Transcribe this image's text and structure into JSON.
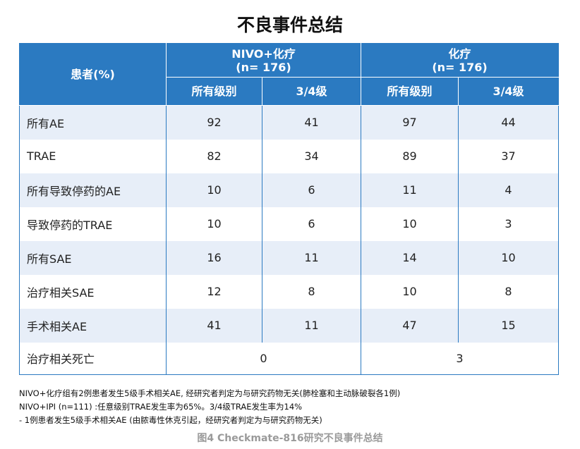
{
  "title": "不良事件总结",
  "table": {
    "header": {
      "patients_label": "患者(%)",
      "group1_name": "NIVO+化疗",
      "group1_n": "(n= 176)",
      "group2_name": "化疗",
      "group2_n": "(n= 176)",
      "sub_all": "所有级别",
      "sub_34": "3/4级"
    },
    "rows": [
      {
        "label": "所有AE",
        "nivo_all": "92",
        "nivo_34": "41",
        "chemo_all": "97",
        "chemo_34": "44"
      },
      {
        "label": "TRAE",
        "nivo_all": "82",
        "nivo_34": "34",
        "chemo_all": "89",
        "chemo_34": "37"
      },
      {
        "label": "所有导致停药的AE",
        "nivo_all": "10",
        "nivo_34": "6",
        "chemo_all": "11",
        "chemo_34": "4"
      },
      {
        "label": "导致停药的TRAE",
        "nivo_all": "10",
        "nivo_34": "6",
        "chemo_all": "10",
        "chemo_34": "3"
      },
      {
        "label": "所有SAE",
        "nivo_all": "16",
        "nivo_34": "11",
        "chemo_all": "14",
        "chemo_34": "10"
      },
      {
        "label": "治疗相关SAE",
        "nivo_all": "12",
        "nivo_34": "8",
        "chemo_all": "10",
        "chemo_34": "8"
      },
      {
        "label": "手术相关AE",
        "nivo_all": "41",
        "nivo_34": "11",
        "chemo_all": "47",
        "chemo_34": "15"
      }
    ],
    "death_row": {
      "label": "治疗相关死亡",
      "nivo": "0",
      "chemo": "3"
    }
  },
  "notes": [
    "NIVO+化疗组有2例患者发生5级手术相关AE, 经研究者判定为与研究药物无关(肺栓塞和主动脉破裂各1例)",
    "NIVO+IPI (n=111) :任意级别TRAE发生率为65%。3/4级TRAE发生率为14%",
    "- 1例患者发生5级手术相关AE (由脓毒性休克引起，经研究者判定为与研究药物无关)"
  ],
  "caption": "图4 Checkmate-816研究不良事件总结",
  "colors": {
    "header_bg": "#2b7ac1",
    "stripe_bg": "#e7eef8",
    "caption": "#9a9a9a"
  }
}
